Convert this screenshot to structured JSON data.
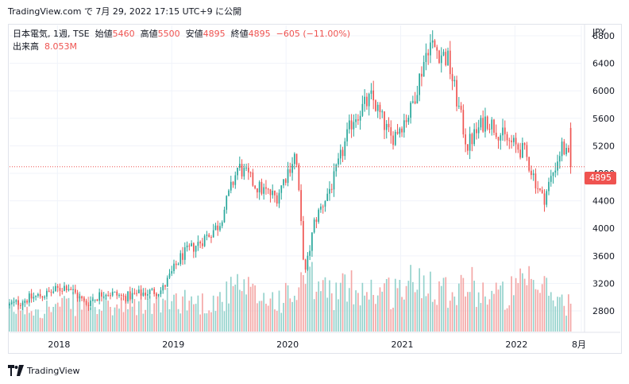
{
  "header": {
    "text": "TradingView.com で 7月 29, 2022 17:15 UTC+9 に公開"
  },
  "legend": {
    "name": "日本電気, 1週, TSE",
    "open_label": "始値",
    "open": "5460",
    "high_label": "高値",
    "high": "5500",
    "low_label": "安値",
    "low": "4895",
    "close_label": "終値",
    "close": "4895",
    "change": "−605 (−11.00%)",
    "volume_label": "出来高",
    "volume": "8.053M"
  },
  "footer": {
    "brand": "TradingView"
  },
  "colors": {
    "up": "#26a69a",
    "down": "#ef5350",
    "up_volume": "#94d2cc",
    "down_volume": "#f4a7a6",
    "grid": "#f0f3fa",
    "text": "#131722"
  },
  "chart_data": {
    "type": "candlestick",
    "currency": "JPY",
    "last_price_label": "4895",
    "x_ticks": [
      "2018",
      "2019",
      "2020",
      "2021",
      "2022",
      "8月"
    ],
    "y_ticks": [
      "2800",
      "3200",
      "3600",
      "4000",
      "4400",
      "4800",
      "5200",
      "5600",
      "6000",
      "6400",
      "6800"
    ],
    "ylim": [
      2500,
      6950
    ],
    "x": [
      "2017-08",
      "2017-10",
      "2017-12",
      "2018-02",
      "2018-04",
      "2018-06",
      "2018-08",
      "2018-10",
      "2018-12",
      "2019-02",
      "2019-04",
      "2019-06",
      "2019-08",
      "2019-10",
      "2019-12",
      "2020-02",
      "2020-03",
      "2020-04",
      "2020-06",
      "2020-08",
      "2020-10",
      "2020-12",
      "2021-02",
      "2021-04",
      "2021-06",
      "2021-08",
      "2021-10",
      "2021-12",
      "2022-02",
      "2022-04",
      "2022-06",
      "2022-07"
    ],
    "close": [
      2880,
      2980,
      3050,
      3170,
      2900,
      3080,
      3000,
      3060,
      3100,
      3600,
      3800,
      4050,
      4900,
      4600,
      4450,
      5100,
      3300,
      4100,
      4700,
      5600,
      5900,
      5300,
      5700,
      6700,
      6450,
      5200,
      5600,
      5300,
      5100,
      4400,
      5200,
      4895
    ],
    "volume_m": [
      6.5,
      7.2,
      6.8,
      7.5,
      8.8,
      6.9,
      7.1,
      7.8,
      8.5,
      9.5,
      8.2,
      9.0,
      12.5,
      10.0,
      9.2,
      10.5,
      15.0,
      13.5,
      11.0,
      13.0,
      12.0,
      11.5,
      13.8,
      15.5,
      12.0,
      14.0,
      11.0,
      10.5,
      13.5,
      12.5,
      8.5,
      8.053
    ]
  }
}
